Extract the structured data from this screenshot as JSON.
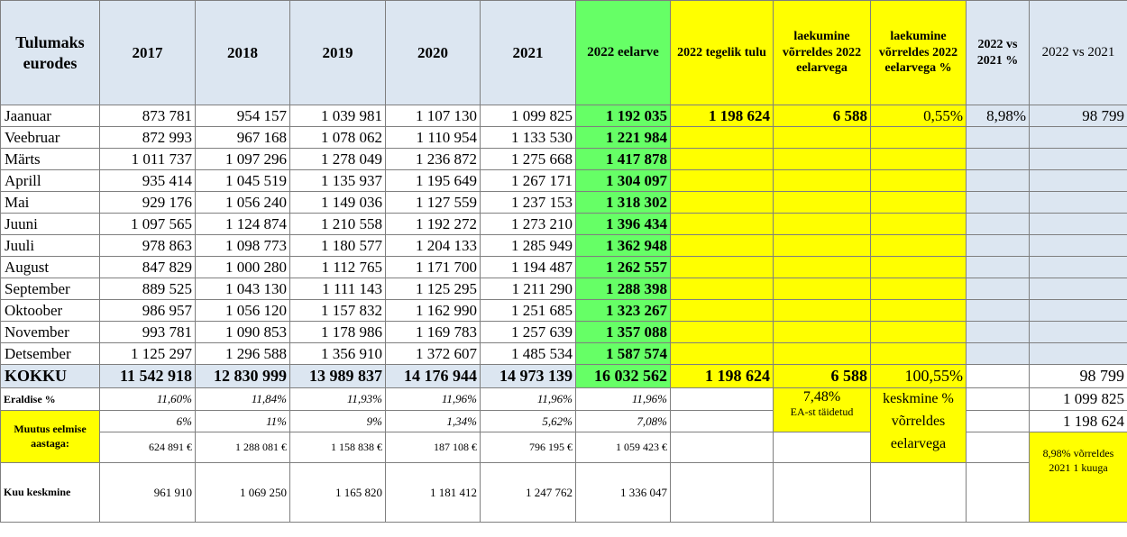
{
  "header": {
    "col0": "Tulumaks eurodes",
    "years": [
      "2017",
      "2018",
      "2019",
      "2020",
      "2021"
    ],
    "budget": "2022 eelarve",
    "actual": "2022 tegelik tulu",
    "vs_budget": "laekumine võrreldes 2022 eelarvega",
    "vs_budget_pct": "laekumine võrreldes 2022 eelarvega %",
    "vs_2021_pct": "2022 vs 2021 %",
    "vs_2021": "2022 vs 2021"
  },
  "months": [
    {
      "name": "Jaanuar",
      "v": [
        "873 781",
        "954 157",
        "1 039 981",
        "1 107 130",
        "1 099 825"
      ],
      "budget": "1 192 035",
      "actual": "1 198 624",
      "diff": "6 588",
      "diff_pct": "0,55%",
      "vs_pct": "8,98%",
      "vs": "98 799"
    },
    {
      "name": "Veebruar",
      "v": [
        "872 993",
        "967 168",
        "1 078 062",
        "1 110 954",
        "1 133 530"
      ],
      "budget": "1 221 984"
    },
    {
      "name": "Märts",
      "v": [
        "1 011 737",
        "1 097 296",
        "1 278 049",
        "1 236 872",
        "1 275 668"
      ],
      "budget": "1 417 878"
    },
    {
      "name": "Aprill",
      "v": [
        "935 414",
        "1 045 519",
        "1 135 937",
        "1 195 649",
        "1 267 171"
      ],
      "budget": "1 304 097"
    },
    {
      "name": "Mai",
      "v": [
        "929 176",
        "1 056 240",
        "1 149 036",
        "1 127 559",
        "1 237 153"
      ],
      "budget": "1 318 302"
    },
    {
      "name": "Juuni",
      "v": [
        "1 097 565",
        "1 124 874",
        "1 210 558",
        "1 192 272",
        "1 273 210"
      ],
      "budget": "1 396 434"
    },
    {
      "name": "Juuli",
      "v": [
        "978 863",
        "1 098 773",
        "1 180 577",
        "1 204 133",
        "1 285 949"
      ],
      "budget": "1 362 948"
    },
    {
      "name": "August",
      "v": [
        "847 829",
        "1 000 280",
        "1 112 765",
        "1 171 700",
        "1 194 487"
      ],
      "budget": "1 262 557"
    },
    {
      "name": "September",
      "v": [
        "889 525",
        "1 043 130",
        "1 111 143",
        "1 125 295",
        "1 211 290"
      ],
      "budget": "1 288 398"
    },
    {
      "name": "Oktoober",
      "v": [
        "986 957",
        "1 056 120",
        "1 157 832",
        "1 162 990",
        "1 251 685"
      ],
      "budget": "1 323 267"
    },
    {
      "name": "November",
      "v": [
        "993 781",
        "1 090 853",
        "1 178 986",
        "1 169 783",
        "1 257 639"
      ],
      "budget": "1 357 088"
    },
    {
      "name": "Detsember",
      "v": [
        "1 125 297",
        "1 296 588",
        "1 356 910",
        "1 372 607",
        "1 485 534"
      ],
      "budget": "1 587 574"
    }
  ],
  "total": {
    "name": "KOKKU",
    "v": [
      "11 542 918",
      "12 830 999",
      "13 989 837",
      "14 176 944",
      "14 973 139"
    ],
    "budget": "16 032 562",
    "actual": "1 198 624",
    "diff": "6 588",
    "diff_pct": "100,55%",
    "vs": "98 799"
  },
  "eraldis": {
    "name": "Eraldise %",
    "v": [
      "11,60%",
      "11,84%",
      "11,93%",
      "11,96%",
      "11,96%",
      "11,96%"
    ],
    "ea_pct": "7,48%",
    "ea_label": "EA-st täidetud",
    "keskmine": "keskmine % võrreldes eelarvega",
    "vs_val": "1 099 825"
  },
  "muutus": {
    "name": "Muutus eelmise aastaga:",
    "pct": [
      "6%",
      "11%",
      "9%",
      "1,34%",
      "5,62%",
      "7,08%"
    ],
    "eur": [
      "624 891 €",
      "1 288 081 €",
      "1 158 838 €",
      "187 108 €",
      "796 195 €",
      "1 059 423 €"
    ],
    "vs_val2": "1 198 624"
  },
  "kesk": {
    "name": "Kuu keskmine",
    "v": [
      "961 910",
      "1 069 250",
      "1 165 820",
      "1 181 412",
      "1 247 762",
      "1 336 047"
    ]
  },
  "compare_note": "8,98% võrreldes 2021 1 kuuga"
}
